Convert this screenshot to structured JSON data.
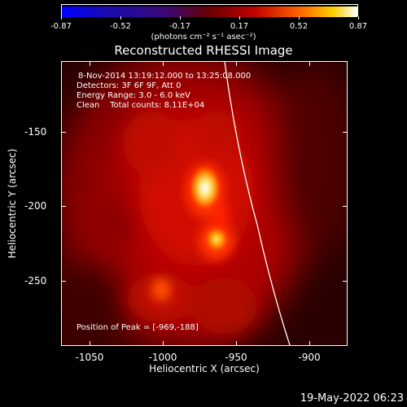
{
  "colorbar": {
    "ticks": [
      "-0.87",
      "-0.52",
      "-0.17",
      "0.17",
      "0.52",
      "0.87"
    ],
    "units": "(photons cm⁻² s⁻¹ asec⁻²)"
  },
  "title": "Reconstructed RHESSI Image",
  "info": {
    "time_range": "8-Nov-2014 13:19:12.000 to 13:25:08.000",
    "detectors": "Detectors: 3F 6F 9F, Att 0",
    "energy_range": "Energy Range: 3.0 - 6.0 keV",
    "clean_counts": "Clean    Total counts: 8.11E+04",
    "peak_position": "Position of Peak = [-969,-188]"
  },
  "axes": {
    "x_label": "Heliocentric X (arcsec)",
    "y_label": "Heliocentric Y (arcsec)",
    "x_ticks": [
      "-1050",
      "-1000",
      "-950",
      "-900"
    ],
    "y_ticks": [
      "-150",
      "-200",
      "-250"
    ]
  },
  "footer_date": "19-May-2022 06:23"
}
